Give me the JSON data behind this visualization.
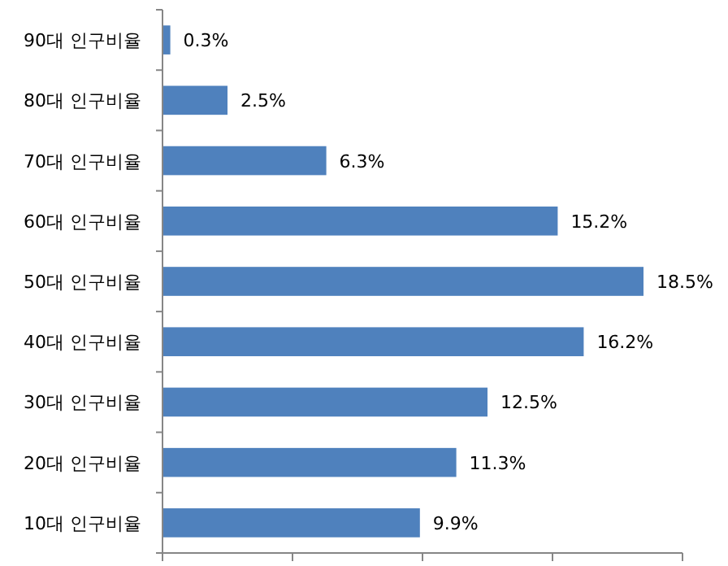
{
  "chart_data": {
    "type": "bar",
    "orientation": "horizontal",
    "categories": [
      "90대 인구비율",
      "80대 인구비율",
      "70대 인구비율",
      "60대 인구비율",
      "50대 인구비율",
      "40대 인구비율",
      "30대 인구비율",
      "20대 인구비율",
      "10대 인구비율"
    ],
    "values": [
      0.3,
      2.5,
      6.3,
      15.2,
      18.5,
      16.2,
      12.5,
      11.3,
      9.9
    ],
    "value_labels": [
      "0.3%",
      "2.5%",
      "6.3%",
      "15.2%",
      "18.5%",
      "16.2%",
      "12.5%",
      "11.3%",
      "9.9%"
    ],
    "color": "#4f81bd",
    "xlim": [
      0,
      20
    ],
    "xticks": [
      {
        "value": 0,
        "label": null
      },
      {
        "value": 5,
        "label": null
      },
      {
        "value": 10,
        "label": null
      },
      {
        "value": 15,
        "label": null
      },
      {
        "value": 20,
        "label": null
      }
    ],
    "tick_labels": "y"
  }
}
